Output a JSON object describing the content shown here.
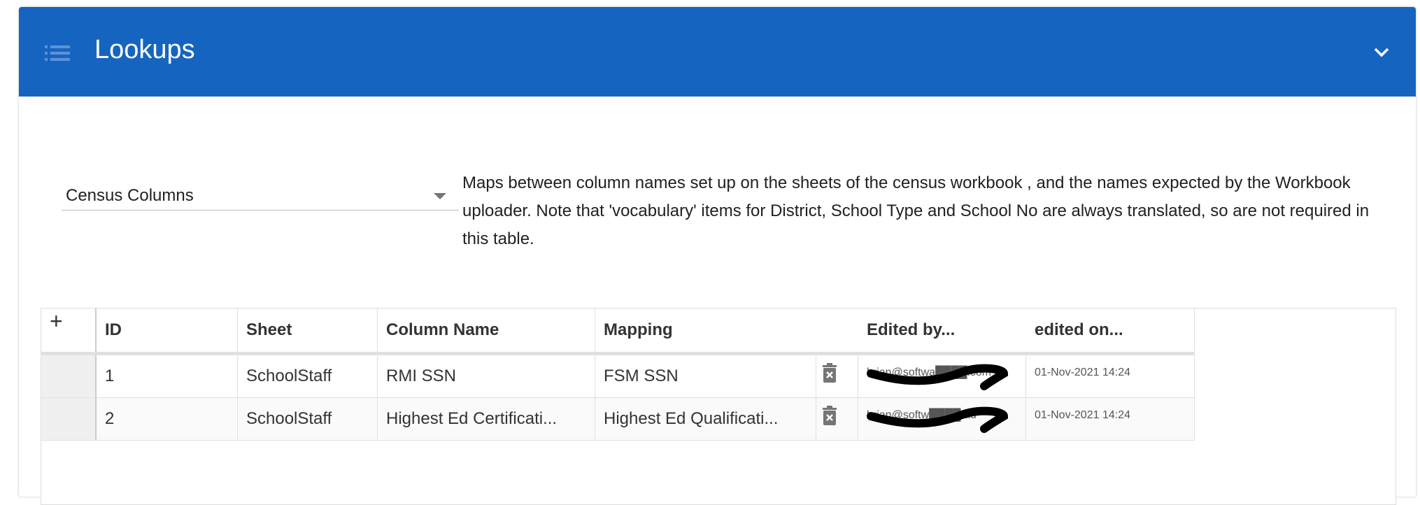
{
  "panel": {
    "title": "Lookups",
    "icon": "list-icon",
    "collapse_icon": "chevron-down-icon",
    "header_color": "#1565c0"
  },
  "lookup_select": {
    "value": "Census Columns"
  },
  "description": "Maps between column names set up on the sheets of the census workbook , and the names expected by the Workbook uploader. Note that 'vocabulary' items for District, School Type and School No are always translated, so are not required in this table.",
  "grid": {
    "add_label": "+",
    "columns": [
      "ID",
      "Sheet",
      "Column Name",
      "Mapping",
      "",
      "Edited by...",
      "edited on..."
    ],
    "rows": [
      {
        "id": "1",
        "sheet": "SchoolStaff",
        "column_name": "RMI SSN",
        "mapping": "FSM SSN",
        "edited_by": "brian@softwa████.com",
        "edited_on": "01-Nov-2021 14:24"
      },
      {
        "id": "2",
        "sheet": "SchoolStaff",
        "column_name": "Highest Ed Certificati...",
        "mapping": "Highest Ed Qualificati...",
        "edited_by": "brian@softw████.au",
        "edited_on": "01-Nov-2021 14:24"
      }
    ]
  }
}
